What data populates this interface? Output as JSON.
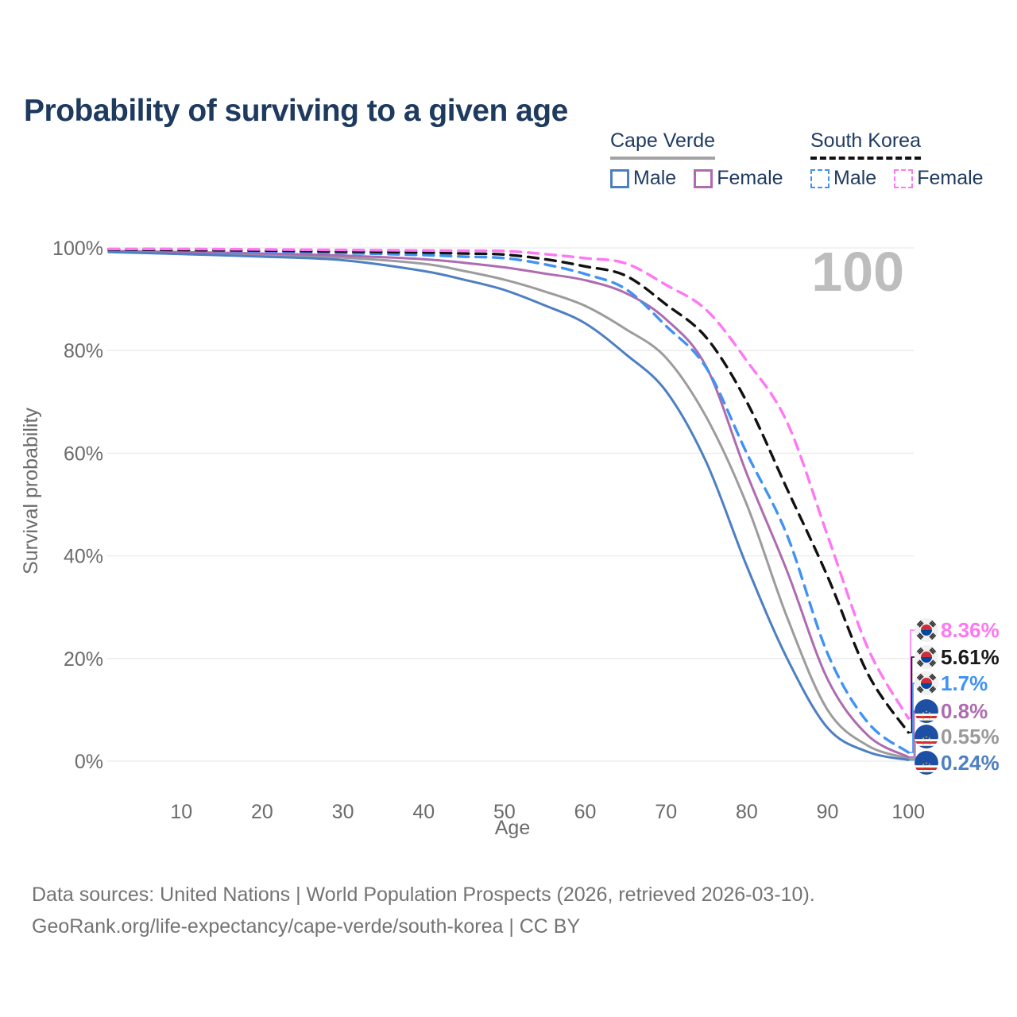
{
  "title": "Probability of surviving to a given age",
  "legend": {
    "groups": [
      {
        "label": "Cape Verde",
        "line_style": "solid",
        "underline_color": "#a3a3a3",
        "items": [
          {
            "label": "Male",
            "color": "#4d7fc3"
          },
          {
            "label": "Female",
            "color": "#ae6bb0"
          }
        ]
      },
      {
        "label": "South Korea",
        "line_style": "dashed",
        "underline_color": "#111111",
        "items": [
          {
            "label": "Male",
            "color": "#4092f4"
          },
          {
            "label": "Female",
            "color": "#ff77f3"
          }
        ]
      }
    ]
  },
  "watermark_age": "100",
  "chart_data": {
    "type": "line",
    "title": "Probability of surviving to a given age",
    "xlabel": "Age",
    "ylabel": "Survival probability",
    "x_ticks": [
      10,
      20,
      30,
      40,
      50,
      60,
      70,
      80,
      90,
      100
    ],
    "y_ticks": [
      "0%",
      "20%",
      "40%",
      "60%",
      "80%",
      "100%"
    ],
    "xlim": [
      0,
      100
    ],
    "ylim": [
      0,
      100
    ],
    "grid": "horizontal",
    "legend_position": "top-right",
    "ages": [
      1,
      10,
      20,
      30,
      40,
      45,
      50,
      55,
      60,
      65,
      70,
      75,
      80,
      85,
      90,
      95,
      100
    ],
    "series": [
      {
        "name": "South Korea Female",
        "country": "South Korea",
        "sex": "Female",
        "flag": "kr",
        "color": "#ff77f3",
        "label_color": "#ff77f3",
        "dashed": true,
        "end_label": "8.36%",
        "values": [
          99.8,
          99.8,
          99.7,
          99.6,
          99.5,
          99.45,
          99.4,
          98.8,
          98.0,
          97.0,
          92.8,
          87.9,
          78.0,
          66.0,
          44.0,
          22.0,
          8.36
        ]
      },
      {
        "name": "South Korea (both sexes)",
        "country": "South Korea",
        "sex": "Both",
        "flag": "kr",
        "color": "#111111",
        "label_color": "#1a1a1a",
        "dashed": true,
        "end_label": "5.61%",
        "values": [
          99.7,
          99.6,
          99.5,
          99.3,
          99.1,
          98.9,
          98.7,
          97.8,
          96.4,
          94.6,
          89.0,
          82.5,
          70.0,
          53.0,
          36.0,
          17.0,
          5.61
        ]
      },
      {
        "name": "South Korea Male",
        "country": "South Korea",
        "sex": "Male",
        "flag": "kr",
        "color": "#4092f4",
        "label_color": "#4092f4",
        "dashed": true,
        "end_label": "1.7%",
        "values": [
          99.7,
          99.5,
          99.3,
          99.0,
          98.6,
          98.3,
          98.0,
          96.8,
          94.9,
          92.0,
          84.8,
          76.6,
          60.0,
          44.0,
          21.0,
          7.5,
          1.7
        ]
      },
      {
        "name": "Cape Verde Female",
        "country": "Cape Verde",
        "sex": "Female",
        "flag": "cv",
        "color": "#ae6bb0",
        "label_color": "#ae6bb0",
        "dashed": false,
        "end_label": "0.8%",
        "values": [
          99.4,
          99.2,
          98.9,
          98.5,
          97.8,
          97.1,
          96.2,
          95.0,
          93.7,
          91.2,
          86.1,
          76.8,
          56.0,
          37.0,
          16.0,
          5.0,
          0.8
        ]
      },
      {
        "name": "Cape Verde (both sexes)",
        "country": "Cape Verde",
        "sex": "Both",
        "flag": "cv",
        "color": "#9c9c9c",
        "label_color": "#9a9a9a",
        "dashed": false,
        "end_label": "0.55%",
        "values": [
          99.3,
          99.0,
          98.6,
          98.1,
          96.9,
          95.5,
          93.8,
          91.5,
          88.7,
          84.2,
          78.6,
          67.0,
          50.0,
          28.0,
          10.0,
          3.0,
          0.55
        ]
      },
      {
        "name": "Cape Verde Male",
        "country": "Cape Verde",
        "sex": "Male",
        "flag": "cv",
        "color": "#4d7fc3",
        "label_color": "#4d7fc3",
        "dashed": false,
        "end_label": "0.24%",
        "values": [
          99.2,
          98.8,
          98.3,
          97.6,
          95.5,
          93.8,
          91.8,
          88.8,
          85.3,
          79.3,
          72.1,
          58.2,
          38.0,
          20.0,
          6.5,
          1.8,
          0.24
        ]
      }
    ]
  },
  "footer": {
    "line1": "Data sources: United Nations | World Population Prospects (2026, retrieved 2026-03-10).",
    "line2": "GeoRank.org/life-expectancy/cape-verde/south-korea | CC BY"
  }
}
